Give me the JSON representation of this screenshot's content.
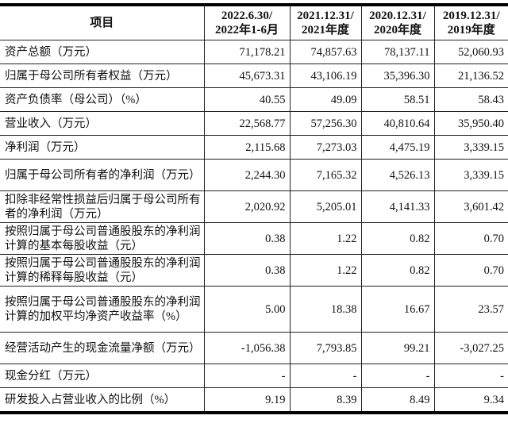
{
  "table": {
    "headers": [
      "项目",
      "2022.6.30/\n2022年1-6月",
      "2021.12.31/\n2021年度",
      "2020.12.31/\n2020年度",
      "2019.12.31/\n2019年度"
    ],
    "header_lines": [
      [
        "项目"
      ],
      [
        "2022.6.30/",
        "2022年1-6月"
      ],
      [
        "2021.12.31/",
        "2021年度"
      ],
      [
        "2020.12.31/",
        "2020年度"
      ],
      [
        "2019.12.31/",
        "2019年度"
      ]
    ],
    "rows": [
      {
        "label": "资产总额（万元）",
        "values": [
          "71,178.21",
          "74,857.63",
          "78,137.11",
          "52,060.93"
        ],
        "lines": 1
      },
      {
        "label": "归属于母公司所有者权益（万元）",
        "values": [
          "45,673.31",
          "43,106.19",
          "35,396.30",
          "21,136.52"
        ],
        "lines": 1
      },
      {
        "label": "资产负债率（母公司）（%）",
        "values": [
          "40.55",
          "49.09",
          "58.51",
          "58.43"
        ],
        "lines": 1
      },
      {
        "label": "营业收入（万元）",
        "values": [
          "22,568.77",
          "57,256.30",
          "40,810.64",
          "35,950.40"
        ],
        "lines": 1
      },
      {
        "label": "净利润（万元）",
        "values": [
          "2,115.68",
          "7,273.03",
          "4,475.19",
          "3,339.15"
        ],
        "lines": 1
      },
      {
        "label": "归属于母公司所有者的净利润（万元）",
        "values": [
          "2,244.30",
          "7,165.32",
          "4,526.13",
          "3,339.15"
        ],
        "lines": 2
      },
      {
        "label": "扣除非经常性损益后归属于母公司所有者的净利润（万元）",
        "values": [
          "2,020.92",
          "5,205.01",
          "4,141.33",
          "3,601.42"
        ],
        "lines": 2
      },
      {
        "label": "按照归属于母公司普通股股东的净利润计算的基本每股收益（元）",
        "values": [
          "0.38",
          "1.22",
          "0.82",
          "0.70"
        ],
        "lines": 2
      },
      {
        "label": "按照归属于母公司普通股股东的净利润计算的稀释每股收益（元）",
        "values": [
          "0.38",
          "1.22",
          "0.82",
          "0.70"
        ],
        "lines": 2
      },
      {
        "label": "按照归属于母公司普通股股东的净利润计算的加权平均净资产收益率（%）",
        "values": [
          "5.00",
          "18.38",
          "16.67",
          "23.57"
        ],
        "lines": 3
      },
      {
        "label": "经营活动产生的现金流量净额（万元）",
        "values": [
          "-1,056.38",
          "7,793.85",
          "99.21",
          "-3,027.25"
        ],
        "lines": 2
      },
      {
        "label": "现金分红（万元）",
        "values": [
          "-",
          "-",
          "-",
          "-"
        ],
        "lines": 1
      },
      {
        "label": "研发投入占营业收入的比例（%）",
        "values": [
          "9.19",
          "8.39",
          "8.49",
          "9.34"
        ],
        "lines": 1
      }
    ]
  }
}
